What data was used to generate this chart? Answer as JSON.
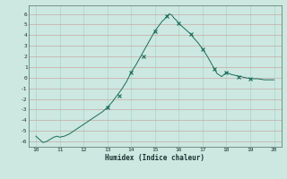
{
  "title": "",
  "xlabel": "Humidex (Indice chaleur)",
  "bg_color": "#cce8e0",
  "grid_color": "#aad4c8",
  "line_color": "#1a6b5a",
  "marker_color": "#1a6b5a",
  "text_color": "#1a3030",
  "axis_color": "#507060",
  "ylim": [
    -6.5,
    6.8
  ],
  "yticks": [
    -6,
    -5,
    -4,
    -3,
    -2,
    -1,
    0,
    1,
    2,
    3,
    4,
    5,
    6
  ],
  "xlim": [
    9.7,
    20.3
  ],
  "xticks": [
    10,
    11,
    12,
    13,
    14,
    15,
    16,
    17,
    18,
    19,
    20
  ],
  "hours": [
    10.0,
    10.15,
    10.3,
    10.45,
    10.6,
    10.75,
    10.9,
    11.0,
    11.2,
    11.4,
    11.6,
    11.8,
    12.0,
    12.2,
    12.4,
    12.6,
    12.8,
    13.0,
    13.2,
    13.4,
    13.6,
    13.8,
    14.0,
    14.2,
    14.4,
    14.6,
    14.8,
    15.0,
    15.1,
    15.2,
    15.3,
    15.4,
    15.5,
    15.6,
    15.7,
    15.8,
    15.9,
    16.0,
    16.1,
    16.2,
    16.3,
    16.4,
    16.5,
    16.6,
    16.8,
    17.0,
    17.2,
    17.4,
    17.5,
    17.6,
    17.8,
    18.0,
    18.2,
    18.4,
    18.6,
    18.8,
    19.0,
    19.3,
    19.6,
    19.9,
    20.0
  ],
  "values": [
    -5.5,
    -5.8,
    -6.1,
    -6.0,
    -5.8,
    -5.6,
    -5.5,
    -5.6,
    -5.5,
    -5.3,
    -5.0,
    -4.7,
    -4.4,
    -4.1,
    -3.8,
    -3.5,
    -3.2,
    -2.8,
    -2.3,
    -1.7,
    -1.1,
    -0.4,
    0.5,
    1.2,
    2.0,
    2.8,
    3.6,
    4.4,
    4.7,
    5.0,
    5.3,
    5.5,
    5.8,
    6.0,
    5.9,
    5.6,
    5.4,
    5.1,
    4.9,
    4.7,
    4.5,
    4.3,
    4.1,
    3.8,
    3.3,
    2.7,
    2.0,
    1.2,
    0.8,
    0.4,
    0.1,
    0.5,
    0.3,
    0.2,
    0.1,
    0.0,
    -0.1,
    -0.1,
    -0.2,
    -0.2,
    -0.2
  ],
  "marker_hours": [
    13.0,
    13.5,
    14.0,
    14.5,
    15.0,
    15.5,
    16.0,
    16.5,
    17.0,
    17.5,
    18.0,
    18.5,
    19.0
  ],
  "marker_values": [
    -2.8,
    -1.7,
    0.5,
    2.0,
    4.4,
    5.8,
    5.1,
    4.1,
    2.7,
    0.8,
    0.5,
    0.1,
    -0.1
  ],
  "figsize": [
    3.2,
    2.0
  ],
  "dpi": 100
}
